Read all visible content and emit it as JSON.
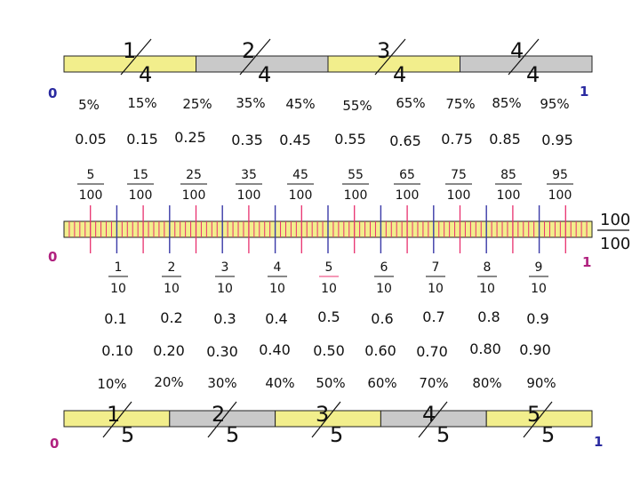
{
  "colors": {
    "yellow": "#f2ee8c",
    "gray": "#c9c9c9",
    "tick_red": "#e8306e",
    "tick_blue": "#3a3aa8",
    "highlight": "#e8306e",
    "end_blue": "#2a2aa0",
    "end_magenta": "#b0217f"
  },
  "top_bar": {
    "start_label": "0",
    "end_label": "1",
    "fractions": [
      {
        "num": "1",
        "den": "4"
      },
      {
        "num": "2",
        "den": "4"
      },
      {
        "num": "3",
        "den": "4"
      },
      {
        "num": "4",
        "den": "4"
      }
    ]
  },
  "percents_top": [
    "5%",
    "15%",
    "25%",
    "35%",
    "45%",
    "55%",
    "65%",
    "75%",
    "85%",
    "95%"
  ],
  "decimals_top": [
    "0.05",
    "0.15",
    "0.25",
    "0.35",
    "0.45",
    "0.55",
    "0.65",
    "0.75",
    "0.85",
    "0.95"
  ],
  "hundredths": [
    {
      "num": "5",
      "den": "100"
    },
    {
      "num": "15",
      "den": "100"
    },
    {
      "num": "25",
      "den": "100"
    },
    {
      "num": "35",
      "den": "100"
    },
    {
      "num": "45",
      "den": "100"
    },
    {
      "num": "55",
      "den": "100"
    },
    {
      "num": "65",
      "den": "100"
    },
    {
      "num": "75",
      "den": "100"
    },
    {
      "num": "85",
      "den": "100"
    },
    {
      "num": "95",
      "den": "100"
    }
  ],
  "number_line": {
    "start_label": "0",
    "end_label": "1",
    "end_fraction": {
      "num": "100",
      "den": "100"
    }
  },
  "tenths": [
    {
      "num": "1",
      "den": "10"
    },
    {
      "num": "2",
      "den": "10"
    },
    {
      "num": "3",
      "den": "10"
    },
    {
      "num": "4",
      "den": "10"
    },
    {
      "num": "5",
      "den": "10"
    },
    {
      "num": "6",
      "den": "10"
    },
    {
      "num": "7",
      "den": "10"
    },
    {
      "num": "8",
      "den": "10"
    },
    {
      "num": "9",
      "den": "10"
    }
  ],
  "decimals_1": [
    "0.1",
    "0.2",
    "0.3",
    "0.4",
    "0.5",
    "0.6",
    "0.7",
    "0.8",
    "0.9"
  ],
  "decimals_2": [
    "0.10",
    "0.20",
    "0.30",
    "0.40",
    "0.50",
    "0.60",
    "0.70",
    "0.80",
    "0.90"
  ],
  "percents_bottom": [
    "10%",
    "20%",
    "30%",
    "40%",
    "50%",
    "60%",
    "70%",
    "80%",
    "90%"
  ],
  "bottom_bar": {
    "start_label": "0",
    "end_label": "1",
    "fractions": [
      {
        "num": "1",
        "den": "5"
      },
      {
        "num": "2",
        "den": "5"
      },
      {
        "num": "3",
        "den": "5"
      },
      {
        "num": "4",
        "den": "5"
      },
      {
        "num": "5",
        "den": "5"
      }
    ]
  }
}
